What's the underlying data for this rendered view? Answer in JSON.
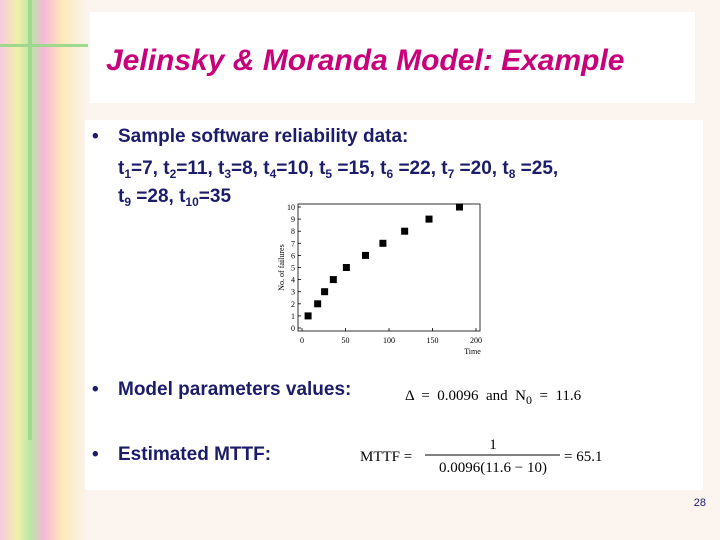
{
  "title": "Jelinsky & Moranda Model: Example",
  "bullets": [
    "Sample software reliability data:",
    "Model parameters values:",
    "Estimated MTTF:"
  ],
  "data_lines": [
    [
      "t",
      "1",
      "=7, t",
      "2",
      "=11, t",
      "3",
      "=8, t",
      "4",
      "=10, t",
      "5",
      " =15, t",
      "6",
      " =22, t",
      "7",
      " =20, t",
      "8",
      " =25,"
    ],
    [
      "t",
      "9",
      " =28, t",
      "10",
      "=35"
    ]
  ],
  "parameters_formula": [
    "Δ  =  0.0096  and  N",
    "0",
    "  =  11.6"
  ],
  "mttf_formula": {
    "lhs": "MTTF =",
    "numerator": "1",
    "denominator": "0.0096(11.6 − 10)",
    "result": "= 65.1"
  },
  "page_number": "28",
  "chart_data": {
    "type": "scatter",
    "xlabel": "Time",
    "ylabel": "No. of failures",
    "x": [
      7,
      18,
      26,
      36,
      51,
      73,
      93,
      118,
      146,
      181
    ],
    "values": [
      1,
      2,
      3,
      4,
      5,
      6,
      7,
      8,
      9,
      10
    ],
    "color": "#000000",
    "xlim": [
      0,
      200
    ],
    "xticks": [
      0,
      50,
      100,
      150,
      200
    ],
    "ylim": [
      0,
      10
    ],
    "yticks": [
      0,
      1,
      2,
      3,
      4,
      5,
      6,
      7,
      8,
      9,
      10
    ]
  }
}
